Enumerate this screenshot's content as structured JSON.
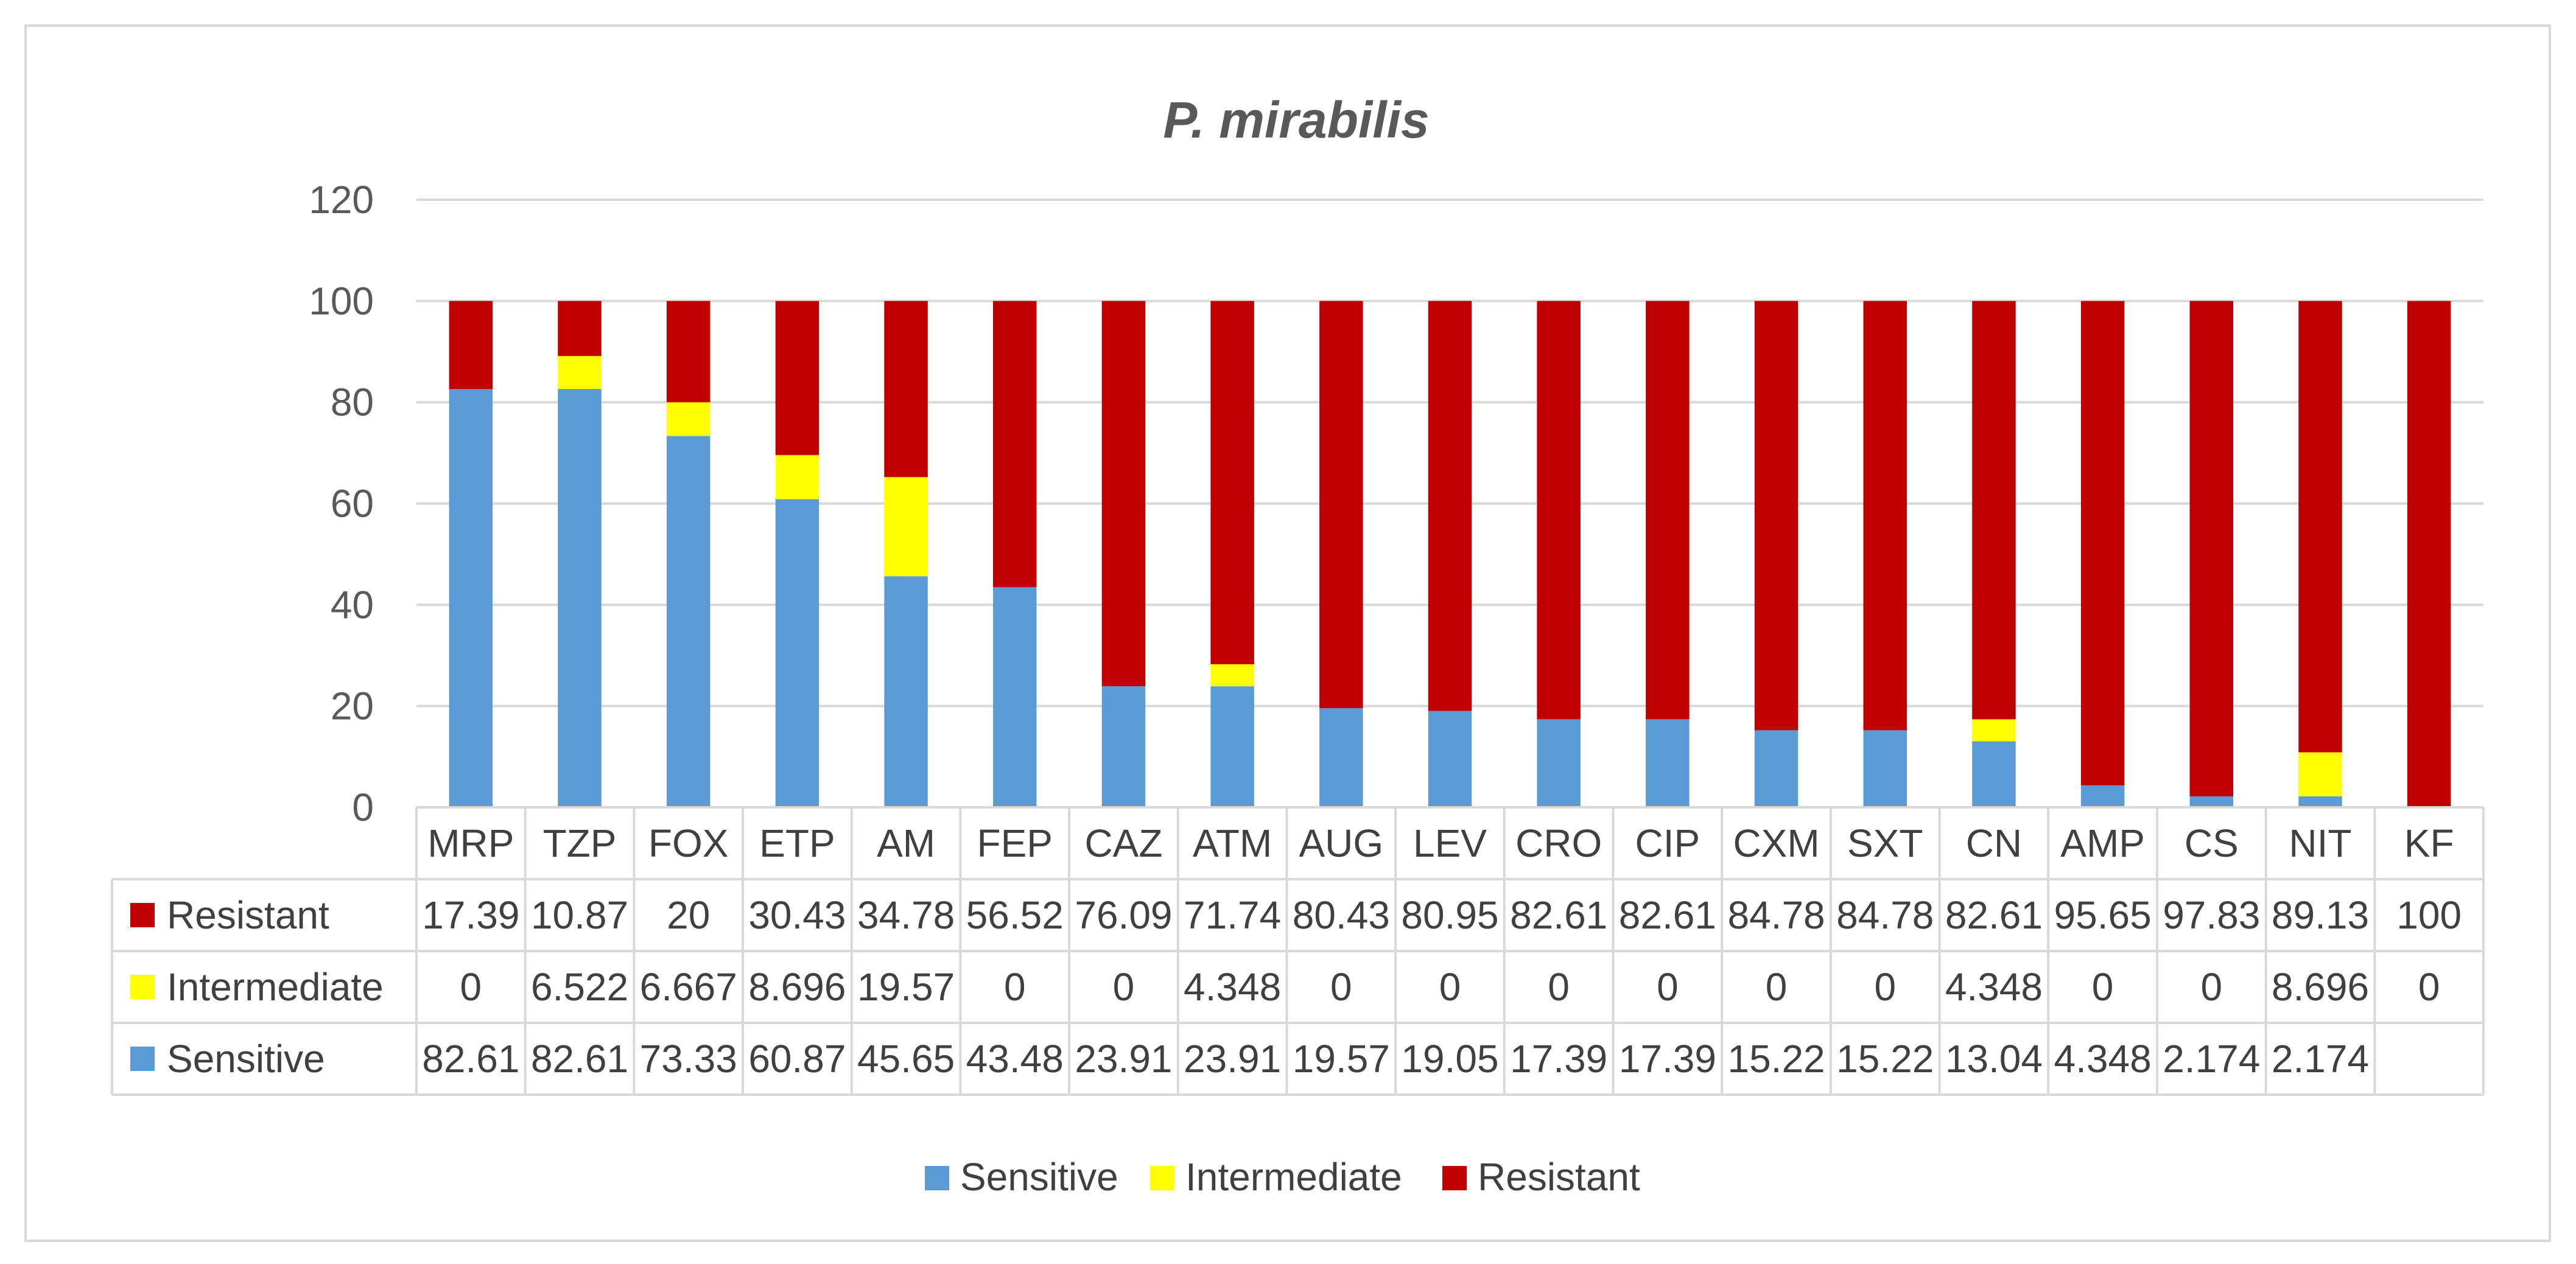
{
  "chart_data": {
    "type": "bar",
    "stacked": true,
    "title": "P. mirabilis",
    "xlabel": "",
    "ylabel": "",
    "ylim": [
      0,
      120
    ],
    "yticks": [
      0,
      20,
      40,
      60,
      80,
      100,
      120
    ],
    "grid": true,
    "legend_position": "bottom",
    "categories": [
      "MRP",
      "TZP",
      "FOX",
      "ETP",
      "AM",
      "FEP",
      "CAZ",
      "ATM",
      "AUG",
      "LEV",
      "CRO",
      "CIP",
      "CXM",
      "SXT",
      "CN",
      "AMP",
      "CS",
      "NIT",
      "KF"
    ],
    "series": [
      {
        "name": "Sensitive",
        "color": "#5b9bd5",
        "values": [
          82.61,
          82.61,
          73.33,
          60.87,
          45.65,
          43.48,
          23.91,
          23.91,
          19.57,
          19.05,
          17.39,
          17.39,
          15.22,
          15.22,
          13.04,
          4.348,
          2.174,
          2.174,
          null
        ],
        "labels": [
          "82.61",
          "82.61",
          "73.33",
          "60.87",
          "45.65",
          "43.48",
          "23.91",
          "23.91",
          "19.57",
          "19.05",
          "17.39",
          "17.39",
          "15.22",
          "15.22",
          "13.04",
          "4.348",
          "2.174",
          "2.174",
          ""
        ]
      },
      {
        "name": "Intermediate",
        "color": "#ffff00",
        "values": [
          0,
          6.522,
          6.667,
          8.696,
          19.57,
          0,
          0,
          4.348,
          0,
          0,
          0,
          0,
          0,
          0,
          4.348,
          0,
          0,
          8.696,
          0
        ],
        "labels": [
          "0",
          "6.522",
          "6.667",
          "8.696",
          "19.57",
          "0",
          "0",
          "4.348",
          "0",
          "0",
          "0",
          "0",
          "0",
          "0",
          "4.348",
          "0",
          "0",
          "8.696",
          "0"
        ]
      },
      {
        "name": "Resistant",
        "color": "#c00000",
        "values": [
          17.39,
          10.87,
          20,
          30.43,
          34.78,
          56.52,
          76.09,
          71.74,
          80.43,
          80.95,
          82.61,
          82.61,
          84.78,
          84.78,
          82.61,
          95.65,
          97.83,
          89.13,
          100
        ],
        "labels": [
          "17.39",
          "10.87",
          "20",
          "30.43",
          "34.78",
          "56.52",
          "76.09",
          "71.74",
          "80.43",
          "80.95",
          "82.61",
          "82.61",
          "84.78",
          "84.78",
          "82.61",
          "95.65",
          "97.83",
          "89.13",
          "100"
        ]
      }
    ],
    "table_row_order": [
      "Resistant",
      "Intermediate",
      "Sensitive"
    ],
    "legend_order": [
      "Sensitive",
      "Intermediate",
      "Resistant"
    ]
  },
  "colors": {
    "gridline": "#d9d9d9",
    "axis_text": "#595959",
    "table_border": "#d9d9d9"
  }
}
